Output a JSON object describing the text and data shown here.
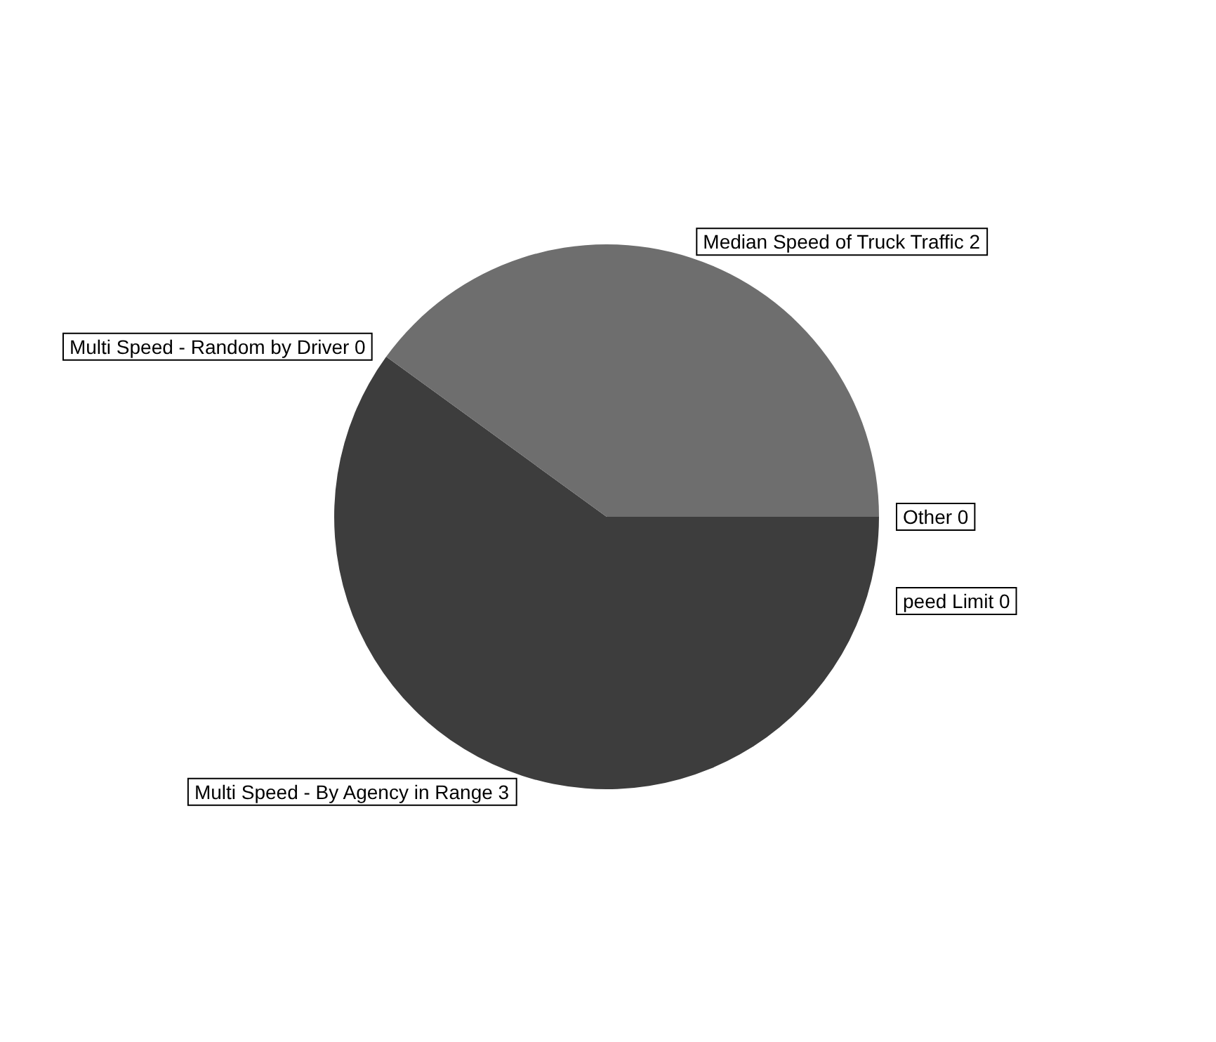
{
  "chart_data": {
    "type": "pie",
    "categories": [
      "Multi Speed - By Agency in Range 3",
      "Multi Speed - Random by Driver 0",
      "Median Speed of Truck Traffic 2",
      "Other 0",
      "peed Limit 0"
    ],
    "values": [
      60,
      0,
      40,
      0,
      0
    ],
    "colors": [
      "#3d3d3d",
      "#555555",
      "#6e6e6e",
      "#888888",
      "#999999"
    ],
    "legend": false
  }
}
